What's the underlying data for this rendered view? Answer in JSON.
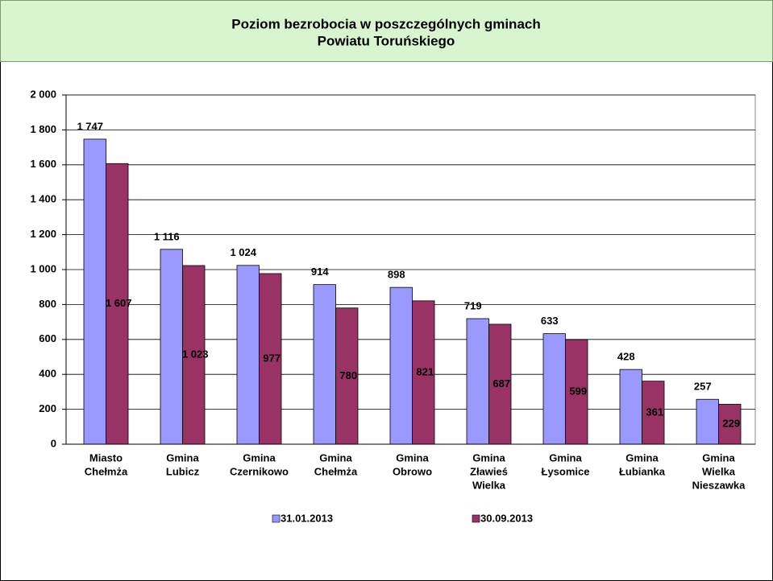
{
  "chart_data": {
    "type": "bar",
    "title": [
      "Poziom bezrobocia w poszczególnych gminach",
      "Powiatu Toruńskiego"
    ],
    "categories": [
      [
        "Miasto",
        "Chełmża"
      ],
      [
        "Gmina",
        "Lubicz"
      ],
      [
        "Gmina",
        "Czernikowo"
      ],
      [
        "Gmina",
        "Chełmża"
      ],
      [
        "Gmina",
        "Obrowo"
      ],
      [
        "Gmina",
        "Zławieś",
        "Wielka"
      ],
      [
        "Gmina",
        "Łysomice"
      ],
      [
        "Gmina",
        "Łubianka"
      ],
      [
        "Gmina",
        "Wielka",
        "Nieszawka"
      ]
    ],
    "series": [
      {
        "name": "31.01.2013",
        "color": "#9999ff",
        "values": [
          1747,
          1116,
          1024,
          914,
          898,
          719,
          633,
          428,
          257
        ],
        "value_labels": [
          "1 747",
          "1 116",
          "1 024",
          "914",
          "898",
          "719",
          "633",
          "428",
          "257"
        ]
      },
      {
        "name": "30.09.2013",
        "color": "#993366",
        "values": [
          1607,
          1023,
          977,
          780,
          821,
          687,
          599,
          361,
          229
        ],
        "value_labels": [
          "1 607",
          "1 023",
          "977",
          "780",
          "821",
          "687",
          "599",
          "361",
          "229"
        ]
      }
    ],
    "ylim": [
      0,
      2000
    ],
    "yticks": [
      0,
      200,
      400,
      600,
      800,
      {
        "value": 1000,
        "label": "1 000"
      },
      {
        "value": 1200,
        "label": "1 200"
      },
      {
        "value": 1400,
        "label": "1 400"
      },
      {
        "value": 1600,
        "label": "1 600"
      },
      {
        "value": 1800,
        "label": "1 800"
      },
      {
        "value": 2000,
        "label": "2 000"
      }
    ],
    "grid": true
  }
}
